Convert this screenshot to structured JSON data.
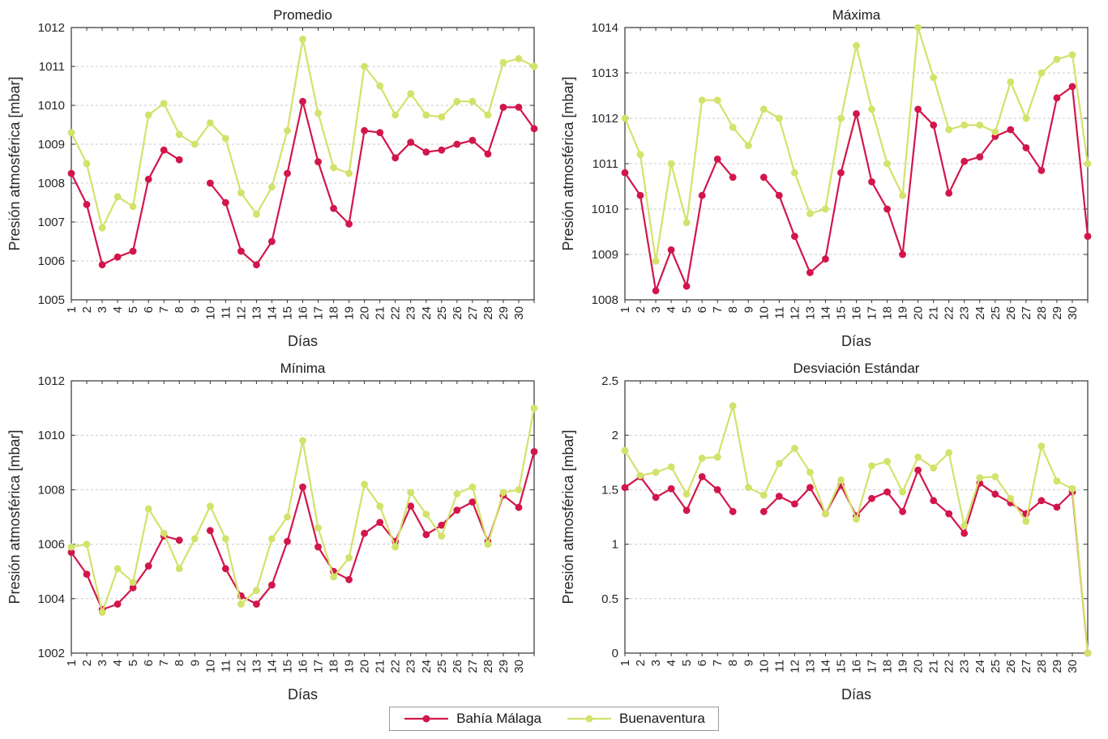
{
  "figure": {
    "background": "#ffffff",
    "axis_color": "#333333",
    "grid_color": "#c9c9c9"
  },
  "legend": {
    "position": "bottom-center-outside",
    "items": [
      {
        "label": "Bahía Málaga",
        "slug": "bahia-malaga",
        "color": "#d2164b",
        "marker": "filled-circle"
      },
      {
        "label": "Buenaventura",
        "slug": "buenaventura",
        "color": "#d3e26a",
        "marker": "filled-circle"
      }
    ]
  },
  "chart_data": [
    {
      "type": "line",
      "title": "Promedio",
      "xlabel": "Días",
      "ylabel": "Presión atmosférica [mbar]",
      "ylim": [
        1005,
        1012
      ],
      "y_ticks": [
        1005,
        1006,
        1007,
        1008,
        1009,
        1010,
        1011,
        1012
      ],
      "grid": "horizontal-dashed",
      "x": [
        1,
        2,
        3,
        4,
        5,
        6,
        7,
        8,
        9,
        10,
        11,
        12,
        13,
        14,
        15,
        16,
        17,
        18,
        19,
        20,
        21,
        22,
        23,
        24,
        25,
        26,
        27,
        28,
        29,
        30,
        31
      ],
      "x_tick_labels": [
        "1",
        "2",
        "3",
        "4",
        "5",
        "6",
        "7",
        "8",
        "9",
        "10",
        "11",
        "12",
        "13",
        "14",
        "15",
        "16",
        "17",
        "18",
        "19",
        "20",
        "21",
        "22",
        "23",
        "24",
        "25",
        "26",
        "27",
        "28",
        "29",
        "30",
        ""
      ],
      "series": [
        {
          "name": "Bahía Málaga",
          "slug": "bahia-malaga",
          "color": "#d2164b",
          "values": [
            1008.25,
            1007.45,
            1005.9,
            1006.1,
            1006.25,
            1008.1,
            1008.85,
            1008.6,
            null,
            1008.0,
            1007.5,
            1006.25,
            1005.9,
            1006.5,
            1008.25,
            1010.1,
            1008.55,
            1007.35,
            1006.95,
            1009.35,
            1009.3,
            1008.65,
            1009.05,
            1008.8,
            1008.85,
            1009.0,
            1009.1,
            1008.75,
            1009.95,
            1009.95,
            1009.4
          ]
        },
        {
          "name": "Buenaventura",
          "slug": "buenaventura",
          "color": "#d3e26a",
          "values": [
            1009.3,
            1008.5,
            1006.85,
            1007.65,
            1007.4,
            1009.75,
            1010.05,
            1009.25,
            1009.0,
            1009.55,
            1009.15,
            1007.75,
            1007.2,
            1007.9,
            1009.35,
            1011.7,
            1009.8,
            1008.4,
            1008.25,
            1011.0,
            1010.5,
            1009.75,
            1010.3,
            1009.75,
            1009.7,
            1010.1,
            1010.1,
            1009.75,
            1011.1,
            1011.2,
            1011.0
          ]
        }
      ]
    },
    {
      "type": "line",
      "title": "Máxima",
      "xlabel": "Días",
      "ylabel": "Presión atmosférica [mbar]",
      "ylim": [
        1008,
        1014
      ],
      "y_ticks": [
        1008,
        1009,
        1010,
        1011,
        1012,
        1013,
        1014
      ],
      "grid": "horizontal-dashed",
      "x": [
        1,
        2,
        3,
        4,
        5,
        6,
        7,
        8,
        9,
        10,
        11,
        12,
        13,
        14,
        15,
        16,
        17,
        18,
        19,
        20,
        21,
        22,
        23,
        24,
        25,
        26,
        27,
        28,
        29,
        30,
        31
      ],
      "x_tick_labels": [
        "1",
        "2",
        "3",
        "4",
        "5",
        "6",
        "7",
        "8",
        "9",
        "10",
        "11",
        "12",
        "13",
        "14",
        "15",
        "16",
        "17",
        "18",
        "19",
        "20",
        "21",
        "22",
        "23",
        "24",
        "25",
        "26",
        "27",
        "28",
        "29",
        "30",
        ""
      ],
      "series": [
        {
          "name": "Bahía Málaga",
          "slug": "bahia-malaga",
          "color": "#d2164b",
          "values": [
            1010.8,
            1010.3,
            1008.2,
            1009.1,
            1008.3,
            1010.3,
            1011.1,
            1010.7,
            null,
            1010.7,
            1010.3,
            1009.4,
            1008.6,
            1008.9,
            1010.8,
            1012.1,
            1010.6,
            1010.0,
            1009.0,
            1012.2,
            1011.85,
            1010.35,
            1011.05,
            1011.15,
            1011.6,
            1011.75,
            1011.35,
            1010.85,
            1012.45,
            1012.7,
            1009.4
          ]
        },
        {
          "name": "Buenaventura",
          "slug": "buenaventura",
          "color": "#d3e26a",
          "values": [
            1012.0,
            1011.2,
            1008.85,
            1011.0,
            1009.7,
            1012.4,
            1012.4,
            1011.8,
            1011.4,
            1012.2,
            1012.0,
            1010.8,
            1009.9,
            1010.0,
            1012.0,
            1013.6,
            1012.2,
            1011.0,
            1010.3,
            1014.0,
            1012.9,
            1011.75,
            1011.85,
            1011.85,
            1011.7,
            1012.8,
            1012.0,
            1013.0,
            1013.3,
            1013.4,
            1011.0
          ]
        }
      ]
    },
    {
      "type": "line",
      "title": "Mínima",
      "xlabel": "Días",
      "ylabel": "Presión atmosférica [mbar]",
      "ylim": [
        1002,
        1012
      ],
      "y_ticks": [
        1002,
        1004,
        1006,
        1008,
        1010,
        1012
      ],
      "grid": "horizontal-dashed",
      "x": [
        1,
        2,
        3,
        4,
        5,
        6,
        7,
        8,
        9,
        10,
        11,
        12,
        13,
        14,
        15,
        16,
        17,
        18,
        19,
        20,
        21,
        22,
        23,
        24,
        25,
        26,
        27,
        28,
        29,
        30,
        31
      ],
      "x_tick_labels": [
        "1",
        "2",
        "3",
        "4",
        "5",
        "6",
        "7",
        "8",
        "9",
        "10",
        "11",
        "12",
        "13",
        "14",
        "15",
        "16",
        "17",
        "18",
        "19",
        "20",
        "21",
        "22",
        "23",
        "24",
        "25",
        "26",
        "27",
        "28",
        "29",
        "30",
        ""
      ],
      "series": [
        {
          "name": "Bahía Málaga",
          "slug": "bahia-malaga",
          "color": "#d2164b",
          "values": [
            1005.7,
            1004.9,
            1003.6,
            1003.8,
            1004.4,
            1005.2,
            1006.3,
            1006.15,
            null,
            1006.5,
            1005.1,
            1004.1,
            1003.8,
            1004.5,
            1006.1,
            1008.1,
            1005.9,
            1005.0,
            1004.7,
            1006.4,
            1006.8,
            1006.1,
            1007.4,
            1006.35,
            1006.7,
            1007.25,
            1007.55,
            1006.1,
            1007.8,
            1007.35,
            1009.4
          ]
        },
        {
          "name": "Buenaventura",
          "slug": "buenaventura",
          "color": "#d3e26a",
          "values": [
            1005.9,
            1006.0,
            1003.5,
            1005.1,
            1004.6,
            1007.3,
            1006.4,
            1005.1,
            1006.2,
            1007.4,
            1006.2,
            1003.8,
            1004.3,
            1006.2,
            1007.0,
            1009.8,
            1006.6,
            1004.8,
            1005.5,
            1008.2,
            1007.4,
            1005.9,
            1007.9,
            1007.1,
            1006.3,
            1007.85,
            1008.1,
            1006.0,
            1007.9,
            1008.0,
            1011.0
          ]
        }
      ]
    },
    {
      "type": "line",
      "title": "Desviación Estándar",
      "xlabel": "Días",
      "ylabel": "Presión atmosférica [mbar]",
      "ylim": [
        0,
        2.5
      ],
      "y_ticks": [
        0,
        0.5,
        1,
        1.5,
        2,
        2.5
      ],
      "grid": "horizontal-dashed",
      "x": [
        1,
        2,
        3,
        4,
        5,
        6,
        7,
        8,
        9,
        10,
        11,
        12,
        13,
        14,
        15,
        16,
        17,
        18,
        19,
        20,
        21,
        22,
        23,
        24,
        25,
        26,
        27,
        28,
        29,
        30,
        31
      ],
      "x_tick_labels": [
        "1",
        "2",
        "3",
        "4",
        "5",
        "6",
        "7",
        "8",
        "9",
        "10",
        "11",
        "12",
        "13",
        "14",
        "15",
        "16",
        "17",
        "18",
        "19",
        "20",
        "21",
        "22",
        "23",
        "24",
        "25",
        "26",
        "27",
        "28",
        "29",
        "30",
        ""
      ],
      "series": [
        {
          "name": "Bahía Málaga",
          "slug": "bahia-malaga",
          "color": "#d2164b",
          "values": [
            1.52,
            1.62,
            1.43,
            1.51,
            1.31,
            1.62,
            1.5,
            1.3,
            null,
            1.3,
            1.44,
            1.37,
            1.52,
            1.28,
            1.54,
            1.26,
            1.42,
            1.48,
            1.3,
            1.68,
            1.4,
            1.28,
            1.1,
            1.56,
            1.46,
            1.38,
            1.28,
            1.4,
            1.34,
            1.48,
            0.0
          ]
        },
        {
          "name": "Buenaventura",
          "slug": "buenaventura",
          "color": "#d3e26a",
          "values": [
            1.86,
            1.63,
            1.66,
            1.71,
            1.46,
            1.79,
            1.8,
            2.27,
            1.52,
            1.45,
            1.74,
            1.88,
            1.66,
            1.28,
            1.59,
            1.23,
            1.72,
            1.76,
            1.48,
            1.8,
            1.7,
            1.84,
            1.17,
            1.61,
            1.62,
            1.42,
            1.21,
            1.9,
            1.58,
            1.51,
            0.0
          ]
        }
      ]
    }
  ]
}
